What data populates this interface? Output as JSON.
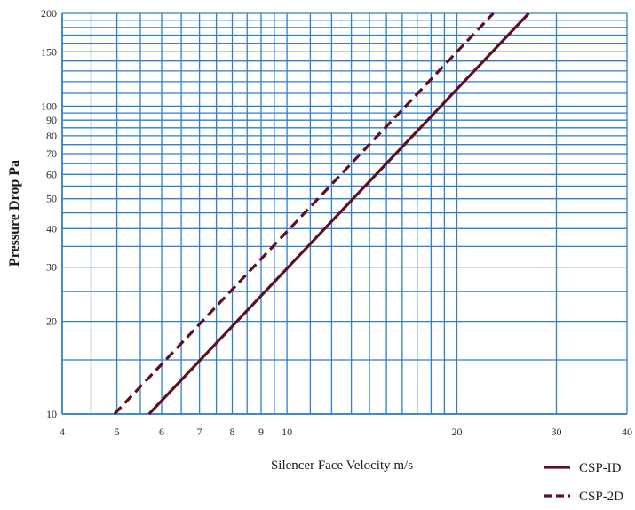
{
  "chart_data": {
    "type": "line",
    "title": "",
    "xlabel": "Silencer Face Velocity m/s",
    "ylabel": "Pressure Drop Pa",
    "x_scale": "log",
    "y_scale": "log",
    "xlim": [
      4,
      40
    ],
    "ylim": [
      10,
      200
    ],
    "grid": true,
    "x_gridlines": [
      4.5,
      5,
      5.5,
      6,
      6.5,
      7,
      7.5,
      8,
      8.5,
      9,
      9.5,
      10,
      11,
      12,
      13,
      14,
      15,
      16,
      17,
      18,
      19,
      20,
      30,
      40
    ],
    "y_gridlines": [
      10,
      15,
      20,
      25,
      30,
      35,
      40,
      45,
      50,
      55,
      60,
      65,
      70,
      75,
      80,
      85,
      90,
      95,
      100,
      110,
      120,
      130,
      140,
      150,
      160,
      170,
      180,
      190,
      200
    ],
    "x_tick_labels": [
      {
        "value": 4,
        "label": "4"
      },
      {
        "value": 5,
        "label": "5"
      },
      {
        "value": 6,
        "label": "6"
      },
      {
        "value": 7,
        "label": "7"
      },
      {
        "value": 8,
        "label": "8"
      },
      {
        "value": 9,
        "label": "9"
      },
      {
        "value": 10,
        "label": "10"
      },
      {
        "value": 20,
        "label": "20"
      },
      {
        "value": 30,
        "label": "30"
      },
      {
        "value": 40,
        "label": "40"
      }
    ],
    "y_tick_labels": [
      {
        "value": 10,
        "label": "10"
      },
      {
        "value": 20,
        "label": "20"
      },
      {
        "value": 30,
        "label": "30"
      },
      {
        "value": 40,
        "label": "40"
      },
      {
        "value": 50,
        "label": "50"
      },
      {
        "value": 60,
        "label": "60"
      },
      {
        "value": 70,
        "label": "70"
      },
      {
        "value": 80,
        "label": "80"
      },
      {
        "value": 90,
        "label": "90"
      },
      {
        "value": 100,
        "label": "100"
      },
      {
        "value": 150,
        "label": "150"
      },
      {
        "value": 200,
        "label": "200"
      }
    ],
    "series": [
      {
        "name": "CSP-ID",
        "style": "solid",
        "color": "#5c1020",
        "x": [
          5.7,
          26.8
        ],
        "y": [
          10,
          200
        ]
      },
      {
        "name": "CSP-2D",
        "style": "dashed",
        "color": "#5c1020",
        "x": [
          4.95,
          23.2
        ],
        "y": [
          10,
          200
        ]
      }
    ],
    "legend": {
      "placement": "bottom-right"
    }
  },
  "colors": {
    "grid": "#2f7fcf",
    "series": "#5c1020"
  }
}
